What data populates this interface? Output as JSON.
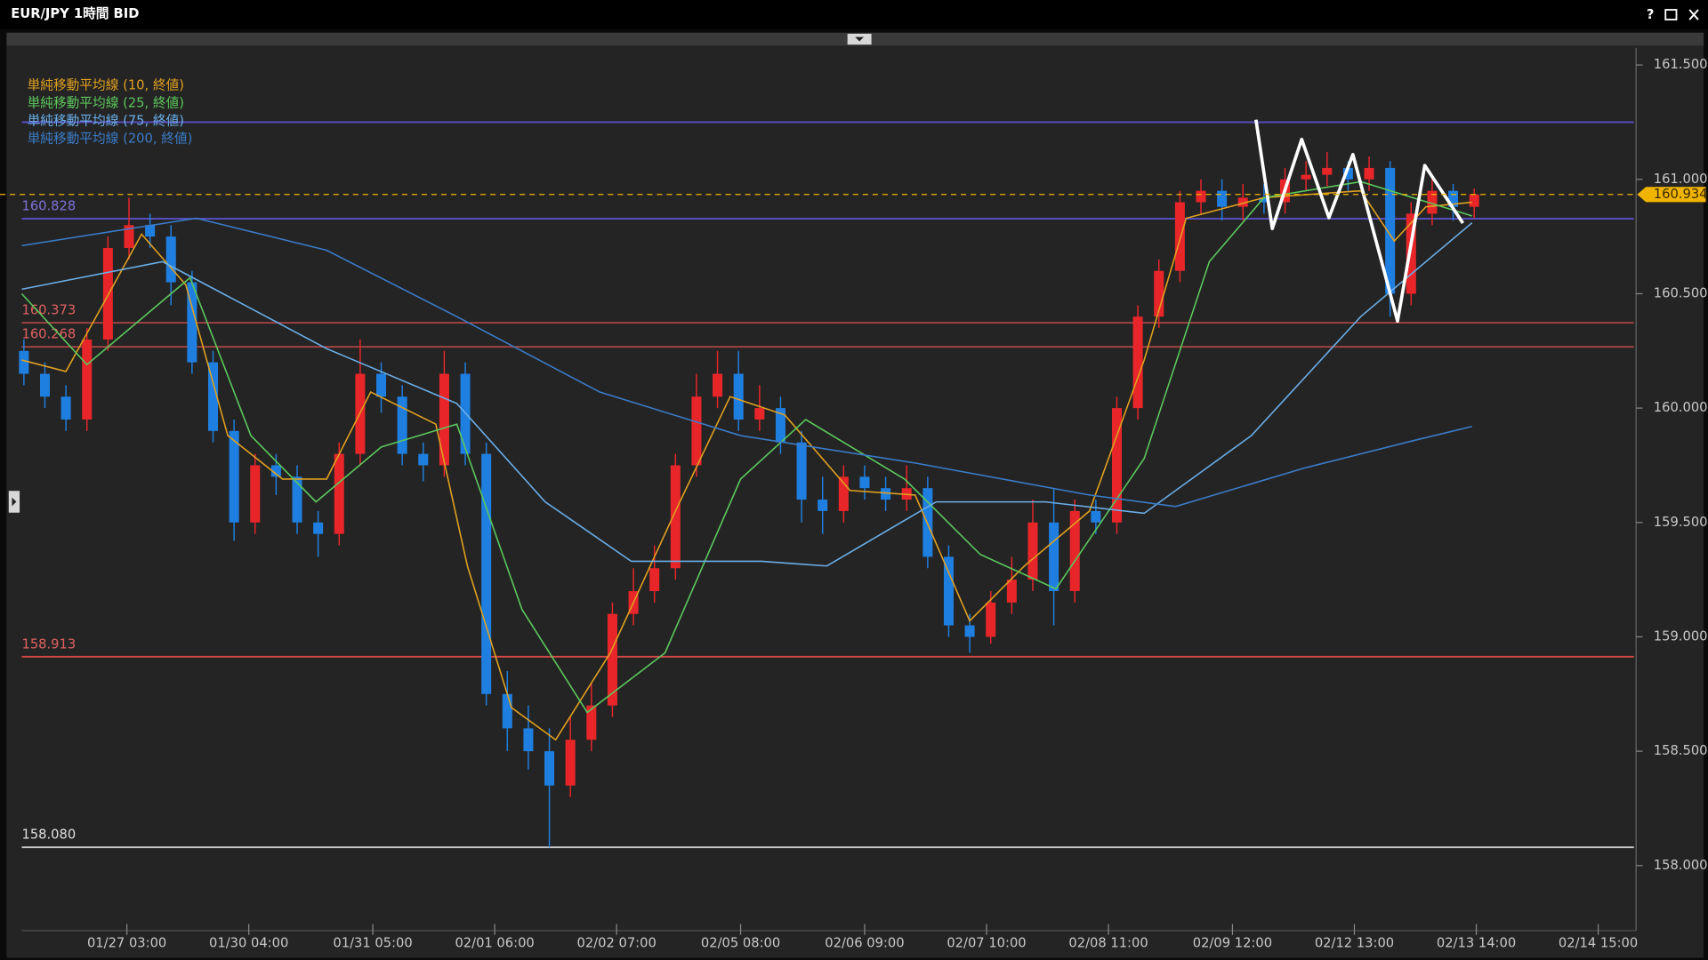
{
  "chart_data": {
    "type": "candlestick",
    "title": "EUR/JPY 1時間 BID",
    "help_label": "?",
    "x": [
      0,
      1,
      2,
      3,
      4,
      5,
      6,
      7,
      8,
      9,
      10,
      11,
      12,
      13,
      14,
      15,
      16,
      17,
      18,
      19,
      20,
      21,
      22,
      23,
      24,
      25,
      26,
      27,
      28,
      29,
      30,
      31,
      32,
      33,
      34,
      35,
      36,
      37,
      38,
      39,
      40,
      41,
      42,
      43,
      44,
      45,
      46,
      47,
      48,
      49,
      50,
      51,
      52,
      53,
      54,
      55,
      56,
      57,
      58,
      59,
      60,
      61,
      62,
      63,
      64,
      65,
      66,
      67,
      68,
      69
    ],
    "open": [
      160.25,
      160.15,
      160.05,
      159.95,
      160.3,
      160.7,
      160.8,
      160.75,
      160.55,
      160.2,
      159.9,
      159.5,
      159.75,
      159.7,
      159.5,
      159.45,
      159.8,
      160.15,
      160.05,
      159.8,
      159.75,
      160.15,
      159.8,
      158.75,
      158.6,
      158.5,
      158.35,
      158.55,
      158.7,
      159.1,
      159.2,
      159.3,
      159.75,
      160.05,
      160.15,
      159.95,
      160.0,
      159.85,
      159.6,
      159.55,
      159.7,
      159.65,
      159.6,
      159.65,
      159.35,
      159.05,
      159.0,
      159.15,
      159.25,
      159.5,
      159.2,
      159.55,
      159.5,
      160.0,
      160.4,
      160.6,
      160.9,
      160.95,
      160.88,
      160.92,
      160.9,
      161.0,
      161.02,
      161.05,
      161.0,
      161.05,
      160.5,
      160.85,
      160.95,
      160.88
    ],
    "high": [
      160.3,
      160.2,
      160.1,
      160.35,
      160.75,
      160.92,
      160.85,
      160.8,
      160.6,
      160.25,
      159.95,
      159.8,
      159.8,
      159.75,
      159.55,
      159.85,
      160.3,
      160.2,
      160.1,
      159.85,
      160.25,
      160.2,
      159.85,
      158.85,
      158.7,
      158.6,
      158.65,
      158.8,
      159.15,
      159.3,
      159.4,
      159.8,
      160.15,
      160.25,
      160.25,
      160.1,
      160.05,
      159.9,
      159.7,
      159.75,
      159.75,
      159.7,
      159.75,
      159.7,
      159.4,
      159.1,
      159.2,
      159.35,
      159.6,
      159.65,
      159.6,
      159.6,
      160.05,
      160.45,
      160.65,
      160.95,
      161.0,
      161.0,
      160.98,
      160.98,
      161.05,
      161.08,
      161.12,
      161.08,
      161.1,
      161.08,
      160.9,
      161.0,
      160.98,
      160.96
    ],
    "low": [
      160.1,
      160.0,
      159.9,
      159.9,
      160.25,
      160.65,
      160.7,
      160.45,
      160.15,
      159.85,
      159.42,
      159.45,
      159.62,
      159.45,
      159.35,
      159.4,
      159.75,
      159.98,
      159.75,
      159.68,
      159.7,
      159.75,
      158.7,
      158.5,
      158.42,
      158.08,
      158.3,
      158.5,
      158.65,
      159.05,
      159.15,
      159.25,
      159.7,
      160.0,
      159.9,
      159.9,
      159.8,
      159.5,
      159.45,
      159.5,
      159.6,
      159.55,
      159.55,
      159.3,
      159.0,
      158.93,
      158.97,
      159.1,
      159.2,
      159.05,
      159.15,
      159.45,
      159.45,
      159.95,
      160.35,
      160.55,
      160.85,
      160.82,
      160.82,
      160.85,
      160.85,
      160.95,
      160.97,
      160.95,
      160.95,
      160.4,
      160.45,
      160.8,
      160.82,
      160.83
    ],
    "close": [
      160.15,
      160.05,
      159.95,
      160.3,
      160.7,
      160.8,
      160.75,
      160.55,
      160.2,
      159.9,
      159.5,
      159.75,
      159.7,
      159.5,
      159.45,
      159.8,
      160.15,
      160.05,
      159.8,
      159.75,
      160.15,
      159.8,
      158.75,
      158.6,
      158.5,
      158.35,
      158.55,
      158.7,
      159.1,
      159.2,
      159.3,
      159.75,
      160.05,
      160.15,
      159.95,
      160.0,
      159.85,
      159.6,
      159.55,
      159.7,
      159.65,
      159.6,
      159.65,
      159.35,
      159.05,
      159.0,
      159.15,
      159.25,
      159.5,
      159.2,
      159.55,
      159.5,
      160.0,
      160.4,
      160.6,
      160.9,
      160.95,
      160.88,
      160.92,
      160.9,
      161.0,
      161.02,
      161.05,
      161.0,
      161.05,
      160.5,
      160.85,
      160.95,
      160.88,
      160.934
    ],
    "up_color": "#e8262a",
    "down_color": "#1f7fe0",
    "series": [
      {
        "name": "単純移動平均線 (10, 終値)",
        "color": "#e0a020",
        "x": [
          -0.1,
          2.0,
          5.6,
          7.7,
          9.7,
          12.3,
          14.4,
          16.5,
          19.6,
          21.1,
          23.2,
          25.3,
          27.9,
          31.0,
          33.6,
          36.2,
          39.3,
          42.4,
          45.0,
          47.6,
          50.7,
          53.3,
          55.3,
          59.0,
          63.6,
          65.2,
          66.7,
          68.9
        ],
        "values": [
          160.21,
          160.16,
          160.76,
          160.54,
          159.88,
          159.69,
          159.69,
          160.07,
          159.93,
          159.31,
          158.69,
          158.55,
          158.93,
          159.55,
          160.05,
          159.97,
          159.64,
          159.62,
          159.07,
          159.31,
          159.55,
          160.21,
          160.83,
          160.92,
          160.95,
          160.73,
          160.88,
          160.9
        ]
      },
      {
        "name": "単純移動平均線 (25, 終値)",
        "color": "#5cc85c",
        "x": [
          -0.1,
          3.0,
          7.9,
          10.8,
          13.9,
          17.0,
          20.6,
          23.7,
          26.8,
          30.5,
          34.1,
          37.2,
          41.9,
          45.5,
          49.1,
          53.3,
          56.4,
          59.0,
          63.6,
          68.9
        ],
        "values": [
          160.5,
          160.19,
          160.57,
          159.88,
          159.59,
          159.83,
          159.93,
          159.12,
          158.67,
          158.93,
          159.69,
          159.95,
          159.69,
          159.36,
          159.21,
          159.78,
          160.64,
          160.92,
          160.99,
          160.84
        ]
      },
      {
        "name": "単純移動平均線 (75, 終値)",
        "color": "#6aaee8",
        "x": [
          -0.1,
          6.6,
          14.4,
          20.6,
          24.8,
          28.9,
          35.1,
          38.2,
          43.4,
          48.6,
          53.3,
          58.4,
          63.6,
          68.9
        ],
        "values": [
          160.52,
          160.64,
          160.26,
          160.02,
          159.59,
          159.33,
          159.33,
          159.31,
          159.59,
          159.59,
          159.54,
          159.88,
          160.4,
          160.81
        ]
      },
      {
        "name": "単純移動平均線 (200, 終値)",
        "color": "#3a7cc8",
        "x": [
          -0.1,
          8.2,
          14.4,
          20.6,
          27.4,
          34.1,
          42.4,
          50.7,
          54.8,
          61.0,
          66.2,
          68.9
        ],
        "values": [
          160.71,
          160.83,
          160.69,
          160.4,
          160.07,
          159.88,
          159.76,
          159.62,
          159.57,
          159.74,
          159.86,
          159.92
        ]
      }
    ],
    "upper_line": {
      "value": 161.25,
      "color": "#5a4fc8"
    },
    "levels": [
      {
        "value": 160.828,
        "color": "#5a4fc8",
        "text_color": "#7d72d8"
      },
      {
        "value": 160.373,
        "color": "#a84444",
        "text_color": "#e06060"
      },
      {
        "value": 160.268,
        "color": "#a84444",
        "text_color": "#e06060"
      },
      {
        "value": 158.913,
        "color": "#d84848",
        "text_color": "#e06060"
      },
      {
        "value": 158.08,
        "label": "158.080",
        "color": "#c8c8c8",
        "text_color": "#e0e0e0"
      }
    ],
    "last_price": 160.934,
    "last_price_color": "#f0b400",
    "xlim": [
      -0.1,
      76.6
    ],
    "ylim": [
      157.73,
      161.57
    ],
    "xticks": [
      {
        "value": 4.9,
        "label": "01/27 03:00"
      },
      {
        "value": 10.7,
        "label": "01/30 04:00"
      },
      {
        "value": 16.6,
        "label": "01/31 05:00"
      },
      {
        "value": 22.4,
        "label": "02/01 06:00"
      },
      {
        "value": 28.2,
        "label": "02/02 07:00"
      },
      {
        "value": 34.1,
        "label": "02/05 08:00"
      },
      {
        "value": 40,
        "label": "02/06 09:00"
      },
      {
        "value": 45.8,
        "label": "02/07 10:00"
      },
      {
        "value": 51.6,
        "label": "02/08 11:00"
      },
      {
        "value": 57.5,
        "label": "02/09 12:00"
      },
      {
        "value": 63.3,
        "label": "02/12 13:00"
      },
      {
        "value": 69.1,
        "label": "02/13 14:00"
      },
      {
        "value": 74.9,
        "label": "02/14 15:00"
      }
    ],
    "yticks": [
      {
        "value": 161.5,
        "label": "161.500"
      },
      {
        "value": 161,
        "label": "161.000"
      },
      {
        "value": 160.5,
        "label": "160.500"
      },
      {
        "value": 160,
        "label": "160.000"
      },
      {
        "value": 159.5,
        "label": "159.500"
      },
      {
        "value": 159,
        "label": "159.000"
      },
      {
        "value": 158.5,
        "label": "158.500"
      },
      {
        "value": 158,
        "label": "158.000"
      }
    ]
  }
}
